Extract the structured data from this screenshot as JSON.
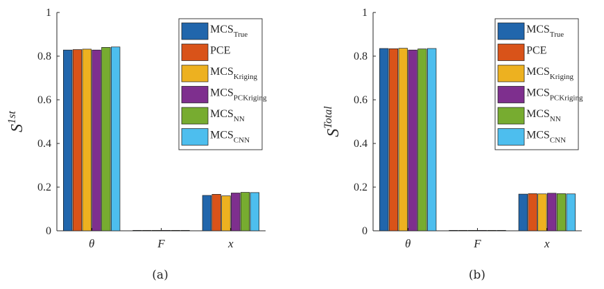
{
  "chart_data": [
    {
      "type": "bar",
      "panel_label": "(a)",
      "ylabel": {
        "base": "S",
        "sup": "1st"
      },
      "categories": [
        "θ",
        "F",
        "x"
      ],
      "ylim": [
        0,
        1
      ],
      "yticks": [
        "0",
        "0.2",
        "0.4",
        "0.6",
        "0.8",
        "1"
      ],
      "grid": false,
      "legend_position": "top-right",
      "series": [
        {
          "name": "MCS",
          "sub": "True",
          "color": "#2166ac",
          "values": [
            0.828,
            0.001,
            0.162
          ]
        },
        {
          "name": "PCE",
          "sub": "",
          "color": "#d95319",
          "values": [
            0.83,
            0.001,
            0.167
          ]
        },
        {
          "name": "MCS",
          "sub": "Kriging",
          "color": "#edb120",
          "values": [
            0.832,
            0.001,
            0.16
          ]
        },
        {
          "name": "MCS",
          "sub": "PCKriging",
          "color": "#7e2f8e",
          "values": [
            0.828,
            0.001,
            0.173
          ]
        },
        {
          "name": "MCS",
          "sub": "NN",
          "color": "#77ac30",
          "values": [
            0.84,
            0.001,
            0.176
          ]
        },
        {
          "name": "MCS",
          "sub": "CNN",
          "color": "#4dbeee",
          "values": [
            0.842,
            0.001,
            0.175
          ]
        }
      ]
    },
    {
      "type": "bar",
      "panel_label": "(b)",
      "ylabel": {
        "base": "S",
        "sup": "Total"
      },
      "categories": [
        "θ",
        "F",
        "x"
      ],
      "ylim": [
        0,
        1
      ],
      "yticks": [
        "0",
        "0.2",
        "0.4",
        "0.6",
        "0.8",
        "1"
      ],
      "grid": false,
      "legend_position": "top-right",
      "series": [
        {
          "name": "MCS",
          "sub": "True",
          "color": "#2166ac",
          "values": [
            0.835,
            0.001,
            0.168
          ]
        },
        {
          "name": "PCE",
          "sub": "",
          "color": "#d95319",
          "values": [
            0.834,
            0.001,
            0.17
          ]
        },
        {
          "name": "MCS",
          "sub": "Kriging",
          "color": "#edb120",
          "values": [
            0.836,
            0.001,
            0.169
          ]
        },
        {
          "name": "MCS",
          "sub": "PCKriging",
          "color": "#7e2f8e",
          "values": [
            0.828,
            0.001,
            0.172
          ]
        },
        {
          "name": "MCS",
          "sub": "NN",
          "color": "#77ac30",
          "values": [
            0.833,
            0.001,
            0.17
          ]
        },
        {
          "name": "MCS",
          "sub": "CNN",
          "color": "#4dbeee",
          "values": [
            0.835,
            0.001,
            0.169
          ]
        }
      ]
    }
  ]
}
